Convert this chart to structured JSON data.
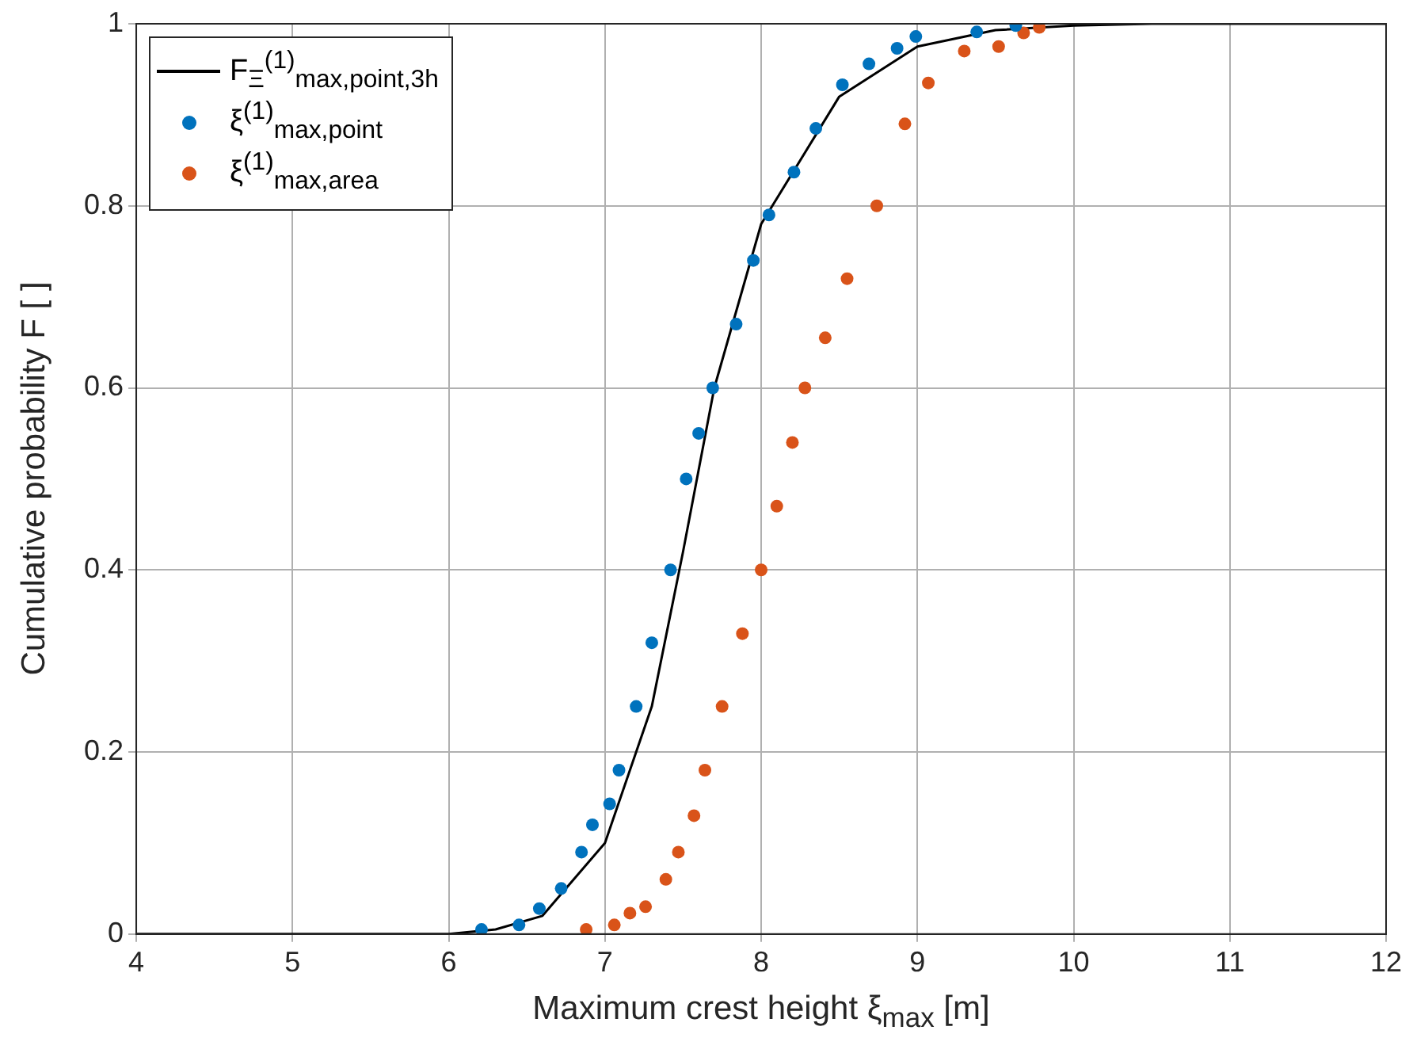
{
  "chart_data": {
    "type": "scatter",
    "xlabel": "Maximum crest height ξ$_{max}$ [m]",
    "ylabel": "Cumulative probability F [ ]",
    "xlim": [
      4,
      12
    ],
    "xticks": [
      4,
      5,
      6,
      7,
      8,
      9,
      10,
      11,
      12
    ],
    "ylim": [
      0,
      1
    ],
    "yticks": [
      0,
      0.2,
      0.4,
      0.6,
      0.8,
      1
    ],
    "grid": true,
    "legend": "top left",
    "marker": "circle",
    "series": [
      {
        "name": "F$_{Ξ}$$^{(1)}$$_{max,point,3h}$",
        "type": "line",
        "marker": "none",
        "line_style": "solid",
        "color": "#000000",
        "x": [
          4,
          5,
          6,
          6.3,
          6.6,
          7,
          7.3,
          7.5,
          7.7,
          8,
          8.5,
          9,
          9.5,
          10,
          10.5,
          11,
          12
        ],
        "values": [
          0,
          0,
          0,
          0.005,
          0.02,
          0.1,
          0.25,
          0.42,
          0.6,
          0.78,
          0.92,
          0.975,
          0.993,
          0.998,
          1,
          1,
          1
        ]
      },
      {
        "name": "ξ$^{(1)}$$_{max,point}$",
        "color": "#0072bd",
        "x": [
          6.21,
          6.45,
          6.58,
          6.72,
          6.85,
          6.92,
          7.03,
          7.09,
          7.2,
          7.3,
          7.42,
          7.52,
          7.6,
          7.69,
          7.84,
          7.95,
          8.05,
          8.21,
          8.35,
          8.52,
          8.69,
          8.87,
          8.99,
          9.38,
          9.63
        ],
        "values": [
          0.005,
          0.01,
          0.028,
          0.05,
          0.09,
          0.12,
          0.143,
          0.18,
          0.25,
          0.32,
          0.4,
          0.5,
          0.55,
          0.6,
          0.67,
          0.74,
          0.79,
          0.837,
          0.885,
          0.933,
          0.956,
          0.973,
          0.986,
          0.991,
          0.998
        ]
      },
      {
        "name": "ξ$^{(1)}$$_{max,area}$",
        "color": "#d95319",
        "x": [
          6.88,
          7.06,
          7.16,
          7.26,
          7.39,
          7.47,
          7.57,
          7.64,
          7.75,
          7.88,
          8.0,
          8.1,
          8.2,
          8.28,
          8.41,
          8.55,
          8.74,
          8.92,
          9.07,
          9.3,
          9.52,
          9.68,
          9.78
        ],
        "values": [
          0.005,
          0.01,
          0.023,
          0.03,
          0.06,
          0.09,
          0.13,
          0.18,
          0.25,
          0.33,
          0.4,
          0.47,
          0.54,
          0.6,
          0.655,
          0.72,
          0.8,
          0.89,
          0.935,
          0.97,
          0.975,
          0.99,
          0.996
        ]
      }
    ]
  }
}
